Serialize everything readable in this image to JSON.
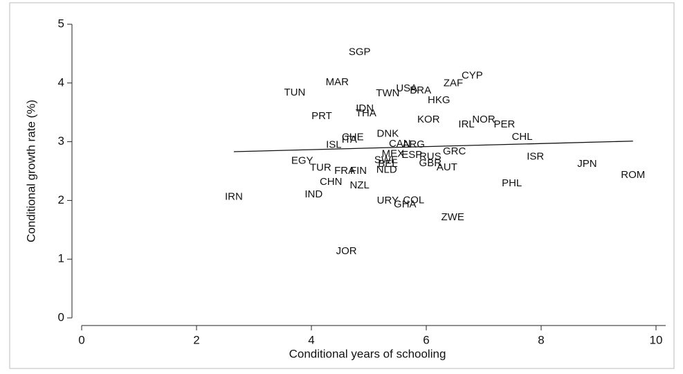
{
  "chart_data": {
    "type": "scatter",
    "xlabel": "Conditional years of schooling",
    "ylabel": "Conditional growth rate (%)",
    "xlim": [
      0,
      10
    ],
    "ylim": [
      0,
      5
    ],
    "xticks": [
      0,
      2,
      4,
      6,
      8,
      10
    ],
    "yticks": [
      0,
      1,
      2,
      3,
      4,
      5
    ],
    "labels": [
      "SGP",
      "MAR",
      "TUN",
      "CYP",
      "ZAF",
      "USA",
      "BRA",
      "TWN",
      "HKG",
      "IDN",
      "THA",
      "PRT",
      "KOR",
      "NOR",
      "IRL",
      "PER",
      "CHL",
      "DNK",
      "CHE",
      "ITA",
      "ISL",
      "CAN",
      "ARG",
      "GRC",
      "MEX",
      "ESP",
      "RUS",
      "ISR",
      "SWE",
      "BEL",
      "EGY",
      "GBR",
      "JPN",
      "NLD",
      "AUT",
      "TUR",
      "FRA",
      "FIN",
      "ROM",
      "PHL",
      "CHN",
      "NZL",
      "IRN",
      "IND",
      "URY",
      "COL",
      "GHA",
      "ZWE",
      "JOR"
    ],
    "x": [
      4.84,
      4.45,
      3.71,
      6.8,
      6.47,
      5.66,
      5.9,
      5.33,
      6.22,
      4.93,
      4.95,
      4.18,
      6.04,
      7.0,
      6.7,
      7.36,
      7.67,
      5.33,
      4.72,
      4.66,
      4.39,
      5.54,
      5.78,
      6.49,
      5.42,
      5.75,
      6.07,
      7.9,
      5.3,
      5.33,
      3.84,
      6.07,
      8.8,
      5.31,
      6.36,
      4.16,
      4.58,
      4.82,
      9.6,
      7.49,
      4.34,
      4.84,
      2.65,
      4.04,
      5.33,
      5.78,
      5.63,
      6.46,
      4.61
    ],
    "y": [
      4.52,
      4.01,
      3.83,
      4.12,
      3.99,
      3.9,
      3.87,
      3.82,
      3.7,
      3.56,
      3.48,
      3.43,
      3.37,
      3.37,
      3.29,
      3.29,
      3.08,
      3.13,
      3.07,
      3.03,
      2.94,
      2.96,
      2.95,
      2.83,
      2.79,
      2.77,
      2.74,
      2.74,
      2.68,
      2.62,
      2.67,
      2.63,
      2.62,
      2.52,
      2.56,
      2.55,
      2.5,
      2.5,
      2.43,
      2.29,
      2.31,
      2.25,
      2.06,
      2.1,
      1.99,
      2.0,
      1.93,
      1.71,
      1.13
    ],
    "fit_line": {
      "x": [
        2.65,
        9.6
      ],
      "y": [
        2.83,
        3.01
      ]
    }
  }
}
